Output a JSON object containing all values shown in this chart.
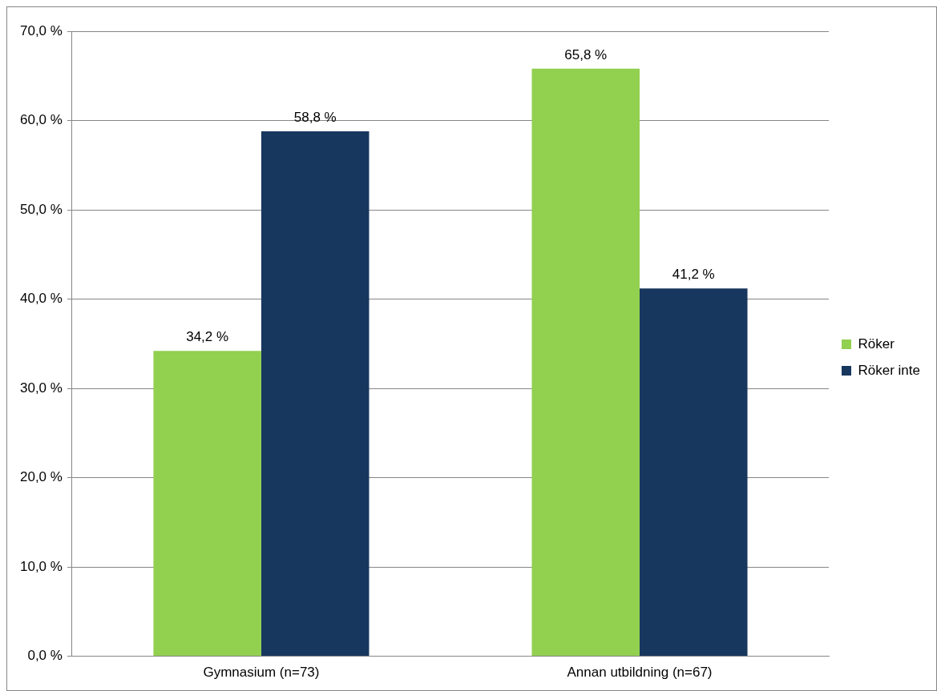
{
  "chart_data": {
    "type": "bar",
    "categories": [
      "Gymnasium (n=73)",
      "Annan utbildning (n=67)"
    ],
    "series": [
      {
        "name": "Röker",
        "color": "#92d050",
        "values": [
          34.2,
          65.8
        ],
        "value_labels": [
          "34,2 %",
          "65,8 %"
        ]
      },
      {
        "name": "Röker inte",
        "color": "#17375e",
        "values": [
          58.8,
          41.2
        ],
        "value_labels": [
          "58,8 %",
          "41,2 %"
        ]
      }
    ],
    "ylim": [
      0,
      70
    ],
    "yticks": [
      {
        "value": 0,
        "label": "0,0 %"
      },
      {
        "value": 10,
        "label": "10,0 %"
      },
      {
        "value": 20,
        "label": "20,0 %"
      },
      {
        "value": 30,
        "label": "30,0 %"
      },
      {
        "value": 40,
        "label": "40,0 %"
      },
      {
        "value": 50,
        "label": "50,0 %"
      },
      {
        "value": 60,
        "label": "60,0 %"
      },
      {
        "value": 70,
        "label": "70,0 %"
      }
    ],
    "grid": "y",
    "legend": "right"
  }
}
